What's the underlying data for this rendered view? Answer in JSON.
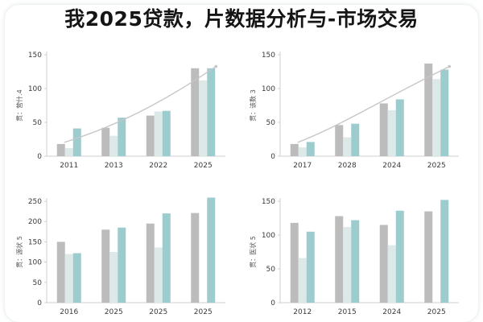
{
  "title": "我2025贷款，片数据分析与-市场交易",
  "colors": {
    "bar_gray": "#bcbcbc",
    "bar_pale": "#dde8e8",
    "bar_teal": "#9ccccd",
    "trend": "#c6c6c6",
    "axis": "#cfcfcf",
    "text": "#3a3a3a"
  },
  "chart_data": [
    {
      "type": "bar",
      "title": "",
      "ylabel": "贯：营什.4",
      "xlabel": "",
      "ylim": [
        0,
        150
      ],
      "yticks": [
        0,
        50,
        100,
        150
      ],
      "categories": [
        "2011",
        "2013",
        "2022",
        "2025"
      ],
      "series": [
        {
          "values": [
            18,
            42,
            60,
            130
          ]
        },
        {
          "values": [
            12,
            30,
            66,
            112
          ]
        },
        {
          "values": [
            41,
            57,
            67,
            130
          ]
        }
      ],
      "trend": true
    },
    {
      "type": "bar",
      "title": "",
      "ylabel": "贯：该数 3",
      "xlabel": "",
      "ylim": [
        0,
        150
      ],
      "yticks": [
        0,
        50,
        100,
        150
      ],
      "categories": [
        "2017",
        "2028",
        "2024",
        "2025"
      ],
      "series": [
        {
          "values": [
            18,
            46,
            78,
            137
          ]
        },
        {
          "values": [
            13,
            28,
            68,
            114
          ]
        },
        {
          "values": [
            21,
            48,
            84,
            128
          ]
        }
      ],
      "trend": true
    },
    {
      "type": "bar",
      "title": "",
      "ylabel": "贯：源状 5",
      "xlabel": "",
      "ylim": [
        0,
        250
      ],
      "yticks": [
        0,
        50,
        100,
        150,
        200,
        250
      ],
      "categories": [
        "2016",
        "2025",
        "2025",
        "2025"
      ],
      "series": [
        {
          "values": [
            150,
            180,
            195,
            221
          ]
        },
        {
          "values": [
            120,
            125,
            136,
            0
          ]
        },
        {
          "values": [
            122,
            185,
            220,
            259
          ]
        }
      ],
      "trend": false
    },
    {
      "type": "bar",
      "title": "",
      "ylabel": "贯：医状 5",
      "xlabel": "",
      "ylim": [
        0,
        150
      ],
      "yticks": [
        0,
        50,
        100,
        150
      ],
      "categories": [
        "2012",
        "2015",
        "2024",
        "2025"
      ],
      "series": [
        {
          "values": [
            118,
            128,
            115,
            135
          ]
        },
        {
          "values": [
            66,
            112,
            85,
            0
          ]
        },
        {
          "values": [
            105,
            122,
            136,
            152
          ]
        }
      ],
      "trend": false
    }
  ]
}
